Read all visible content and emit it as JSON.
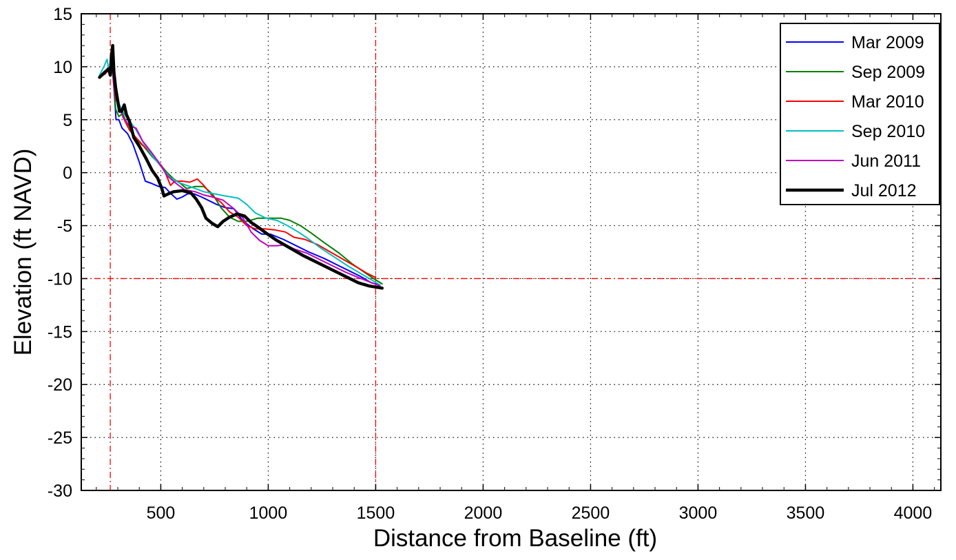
{
  "chart_data": {
    "type": "line",
    "title": "",
    "xlabel": "Distance from Baseline (ft)",
    "ylabel": "Elevation (ft NAVD)",
    "xlim": [
      130,
      4130
    ],
    "ylim": [
      -30,
      15
    ],
    "xticks": [
      500,
      1000,
      1500,
      2000,
      2500,
      3000,
      3500,
      4000
    ],
    "yticks": [
      15,
      10,
      5,
      0,
      -5,
      -10,
      -15,
      -20,
      -25,
      -30
    ],
    "grid": true,
    "legend_position": "top-right",
    "reference_lines": {
      "vertical_x": [
        265,
        1500
      ],
      "horizontal_y": [
        -10
      ],
      "color": "#ff0000"
    },
    "series": [
      {
        "name": "Mar 2009",
        "color": "#0000ff",
        "points": [
          [
            215,
            9
          ],
          [
            240,
            9.5
          ],
          [
            258,
            10
          ],
          [
            265,
            9.3
          ],
          [
            272,
            10.5
          ],
          [
            282,
            8
          ],
          [
            292,
            5
          ],
          [
            305,
            5
          ],
          [
            320,
            4.2
          ],
          [
            345,
            3.7
          ],
          [
            370,
            2.7
          ],
          [
            400,
            1
          ],
          [
            428,
            -0.8
          ],
          [
            455,
            -1
          ],
          [
            490,
            -1.3
          ],
          [
            520,
            -1.4
          ],
          [
            548,
            -2
          ],
          [
            575,
            -2.5
          ],
          [
            600,
            -2.3
          ],
          [
            625,
            -2
          ],
          [
            655,
            -2
          ],
          [
            690,
            -2.3
          ],
          [
            730,
            -2.7
          ],
          [
            760,
            -3
          ],
          [
            800,
            -3.3
          ],
          [
            840,
            -3.4
          ],
          [
            880,
            -4.5
          ],
          [
            930,
            -5.3
          ],
          [
            970,
            -5.8
          ],
          [
            1010,
            -5.8
          ],
          [
            1070,
            -6.3
          ],
          [
            1120,
            -6.8
          ],
          [
            1190,
            -7.5
          ],
          [
            1260,
            -8.1
          ],
          [
            1320,
            -8.7
          ],
          [
            1380,
            -9.3
          ],
          [
            1430,
            -9.8
          ],
          [
            1480,
            -10.4
          ],
          [
            1520,
            -10.6
          ]
        ]
      },
      {
        "name": "Sep 2009",
        "color": "#008000",
        "points": [
          [
            215,
            9
          ],
          [
            240,
            9.4
          ],
          [
            258,
            9.8
          ],
          [
            265,
            9.4
          ],
          [
            272,
            10.8
          ],
          [
            282,
            8.5
          ],
          [
            290,
            6
          ],
          [
            305,
            5.3
          ],
          [
            322,
            5.6
          ],
          [
            350,
            4.3
          ],
          [
            380,
            3.2
          ],
          [
            420,
            2.5
          ],
          [
            460,
            1.5
          ],
          [
            500,
            0.7
          ],
          [
            530,
            0
          ],
          [
            560,
            -0.6
          ],
          [
            590,
            -1
          ],
          [
            620,
            -1.5
          ],
          [
            660,
            -1.3
          ],
          [
            700,
            -1.3
          ],
          [
            740,
            -2
          ],
          [
            780,
            -3.3
          ],
          [
            820,
            -4.2
          ],
          [
            860,
            -4.6
          ],
          [
            900,
            -4.6
          ],
          [
            950,
            -4.3
          ],
          [
            1000,
            -4.3
          ],
          [
            1060,
            -4.3
          ],
          [
            1100,
            -4.5
          ],
          [
            1150,
            -5
          ],
          [
            1200,
            -5.7
          ],
          [
            1260,
            -6.6
          ],
          [
            1330,
            -7.6
          ],
          [
            1390,
            -8.6
          ],
          [
            1440,
            -9.3
          ],
          [
            1490,
            -10
          ],
          [
            1530,
            -10.5
          ]
        ]
      },
      {
        "name": "Mar 2010",
        "color": "#ff0000",
        "points": [
          [
            215,
            9
          ],
          [
            240,
            9.3
          ],
          [
            258,
            9.7
          ],
          [
            265,
            9.2
          ],
          [
            272,
            10.5
          ],
          [
            282,
            8.2
          ],
          [
            292,
            6.8
          ],
          [
            305,
            6.5
          ],
          [
            325,
            5.2
          ],
          [
            355,
            4
          ],
          [
            390,
            3.2
          ],
          [
            430,
            2.3
          ],
          [
            470,
            1.5
          ],
          [
            505,
            0.6
          ],
          [
            525,
            -0.2
          ],
          [
            545,
            -1.2
          ],
          [
            565,
            -0.8
          ],
          [
            600,
            -0.8
          ],
          [
            635,
            -0.9
          ],
          [
            670,
            -0.6
          ],
          [
            700,
            -1.2
          ],
          [
            740,
            -2.2
          ],
          [
            780,
            -2.8
          ],
          [
            820,
            -3.7
          ],
          [
            860,
            -4.2
          ],
          [
            900,
            -5
          ],
          [
            940,
            -5.3
          ],
          [
            985,
            -5.3
          ],
          [
            1030,
            -5.4
          ],
          [
            1080,
            -5.6
          ],
          [
            1120,
            -6.1
          ],
          [
            1170,
            -6.3
          ],
          [
            1230,
            -6.8
          ],
          [
            1290,
            -7.5
          ],
          [
            1350,
            -8.2
          ],
          [
            1410,
            -8.9
          ],
          [
            1460,
            -9.5
          ],
          [
            1500,
            -9.9
          ]
        ]
      },
      {
        "name": "Sep 2010",
        "color": "#00bfbf",
        "points": [
          [
            215,
            9.2
          ],
          [
            235,
            10
          ],
          [
            250,
            10.7
          ],
          [
            258,
            9.8
          ],
          [
            265,
            9.2
          ],
          [
            272,
            10.4
          ],
          [
            282,
            8.7
          ],
          [
            292,
            7.2
          ],
          [
            305,
            6.5
          ],
          [
            325,
            5.7
          ],
          [
            350,
            5
          ],
          [
            380,
            4.2
          ],
          [
            420,
            2.8
          ],
          [
            460,
            1.6
          ],
          [
            500,
            0.6
          ],
          [
            540,
            -0.4
          ],
          [
            580,
            -0.9
          ],
          [
            620,
            -1.2
          ],
          [
            660,
            -1.5
          ],
          [
            700,
            -1.8
          ],
          [
            750,
            -2
          ],
          [
            800,
            -2.2
          ],
          [
            860,
            -2.4
          ],
          [
            900,
            -3
          ],
          [
            940,
            -3.8
          ],
          [
            990,
            -4.3
          ],
          [
            1040,
            -4.5
          ],
          [
            1090,
            -5
          ],
          [
            1140,
            -5.6
          ],
          [
            1190,
            -6.3
          ],
          [
            1250,
            -7.2
          ],
          [
            1310,
            -8
          ],
          [
            1370,
            -8.8
          ],
          [
            1420,
            -9.4
          ],
          [
            1470,
            -10
          ],
          [
            1520,
            -10.6
          ]
        ]
      },
      {
        "name": "Jun 2011",
        "color": "#bf00bf",
        "points": [
          [
            215,
            9
          ],
          [
            240,
            9.4
          ],
          [
            258,
            9.8
          ],
          [
            265,
            9.2
          ],
          [
            272,
            10.4
          ],
          [
            282,
            8.5
          ],
          [
            292,
            7
          ],
          [
            305,
            6.3
          ],
          [
            325,
            5.2
          ],
          [
            355,
            4.4
          ],
          [
            385,
            4.2
          ],
          [
            415,
            3
          ],
          [
            450,
            2.1
          ],
          [
            490,
            1
          ],
          [
            530,
            -0.3
          ],
          [
            570,
            -1
          ],
          [
            610,
            -1.6
          ],
          [
            660,
            -1.8
          ],
          [
            700,
            -2.1
          ],
          [
            740,
            -2.3
          ],
          [
            790,
            -2.6
          ],
          [
            840,
            -3.4
          ],
          [
            880,
            -4.2
          ],
          [
            920,
            -5.6
          ],
          [
            960,
            -6.4
          ],
          [
            1000,
            -6.9
          ],
          [
            1040,
            -6.9
          ],
          [
            1080,
            -6.8
          ],
          [
            1120,
            -7.2
          ],
          [
            1180,
            -7.6
          ],
          [
            1240,
            -8.2
          ],
          [
            1300,
            -8.8
          ],
          [
            1360,
            -9.4
          ],
          [
            1420,
            -9.9
          ],
          [
            1470,
            -10.3
          ],
          [
            1520,
            -10.7
          ]
        ]
      },
      {
        "name": "Jul 2012",
        "color": "#000000",
        "points": [
          [
            215,
            9
          ],
          [
            240,
            9.5
          ],
          [
            258,
            9.8
          ],
          [
            265,
            9.2
          ],
          [
            270,
            11
          ],
          [
            276,
            12
          ],
          [
            282,
            9.5
          ],
          [
            290,
            8
          ],
          [
            298,
            7
          ],
          [
            308,
            5.8
          ],
          [
            318,
            5.8
          ],
          [
            330,
            6.4
          ],
          [
            340,
            5.5
          ],
          [
            355,
            4.8
          ],
          [
            375,
            3.3
          ],
          [
            400,
            2.5
          ],
          [
            430,
            1.4
          ],
          [
            460,
            0.2
          ],
          [
            485,
            -0.5
          ],
          [
            505,
            -1.5
          ],
          [
            515,
            -2.2
          ],
          [
            535,
            -2
          ],
          [
            560,
            -1.8
          ],
          [
            600,
            -1.7
          ],
          [
            640,
            -1.9
          ],
          [
            665,
            -2.5
          ],
          [
            690,
            -3.3
          ],
          [
            710,
            -4.3
          ],
          [
            740,
            -4.8
          ],
          [
            765,
            -5.1
          ],
          [
            790,
            -4.6
          ],
          [
            820,
            -4.2
          ],
          [
            855,
            -3.9
          ],
          [
            890,
            -4.1
          ],
          [
            920,
            -4.7
          ],
          [
            950,
            -5.1
          ],
          [
            990,
            -5.7
          ],
          [
            1040,
            -6.4
          ],
          [
            1100,
            -7.1
          ],
          [
            1160,
            -7.8
          ],
          [
            1230,
            -8.5
          ],
          [
            1300,
            -9.2
          ],
          [
            1360,
            -9.8
          ],
          [
            1420,
            -10.4
          ],
          [
            1470,
            -10.7
          ],
          [
            1530,
            -10.9
          ]
        ]
      }
    ]
  }
}
